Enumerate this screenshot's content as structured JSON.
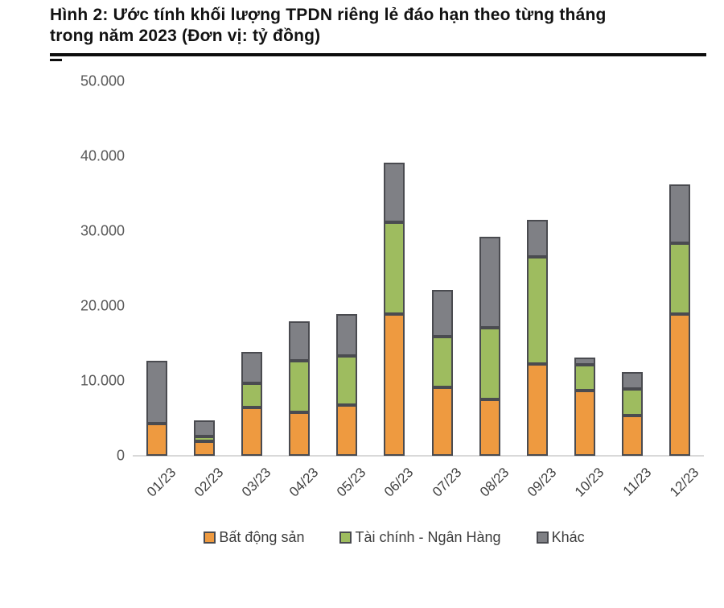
{
  "title": {
    "lines": [
      "Hình 2: Ước tính khối lượng TPDN riêng lẻ đáo hạn theo từng tháng",
      "trong năm 2023 (Đơn vị: tỷ đồng)"
    ]
  },
  "chart_data": {
    "type": "bar",
    "stacked": true,
    "title": "Ước tính khối lượng TPDN riêng lẻ đáo hạn theo từng tháng trong năm 2023",
    "unit": "tỷ đồng",
    "categories": [
      "01/23",
      "02/23",
      "03/23",
      "04/23",
      "05/23",
      "06/23",
      "07/23",
      "08/23",
      "09/23",
      "10/23",
      "11/23",
      "12/23"
    ],
    "series": [
      {
        "name": "Bất động sản",
        "color": "#ee9a40",
        "values": [
          4300,
          1900,
          6500,
          5800,
          6800,
          18900,
          9100,
          7500,
          12300,
          8700,
          5400,
          18900
        ]
      },
      {
        "name": "Tài chính - Ngân Hàng",
        "color": "#9ebc5f",
        "values": [
          0,
          600,
          3200,
          6900,
          6600,
          12300,
          6800,
          9600,
          14300,
          3400,
          3500,
          9500
        ]
      },
      {
        "name": "Khác",
        "color": "#7f8085",
        "values": [
          8400,
          2100,
          4200,
          5300,
          5600,
          8000,
          6200,
          12200,
          4900,
          1000,
          2300,
          7800
        ]
      }
    ],
    "totals": [
      12700,
      4600,
      13900,
      18000,
      19000,
      39200,
      22100,
      29300,
      31500,
      13100,
      11200,
      36200
    ],
    "ylim": [
      0,
      50000
    ],
    "yticks": [
      {
        "value": 50000,
        "label": "50.000"
      },
      {
        "value": 40000,
        "label": "40.000"
      },
      {
        "value": 30000,
        "label": "30.000"
      },
      {
        "value": 20000,
        "label": "20.000"
      },
      {
        "value": 10000,
        "label": "10.000"
      },
      {
        "value": 0,
        "label": "0"
      }
    ],
    "grid": false,
    "legend_position": "bottom"
  },
  "colors": {
    "segment_border": "#4a4b50",
    "axis_line": "#d9d9d9",
    "tick_text": "#595959",
    "title_text": "#121212"
  }
}
